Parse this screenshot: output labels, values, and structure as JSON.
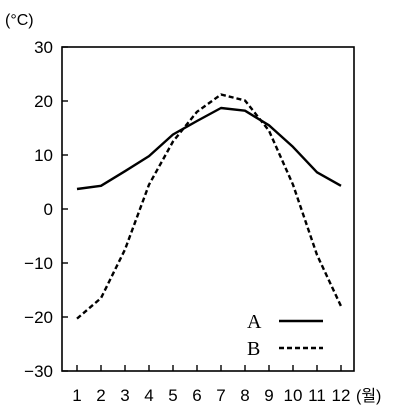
{
  "chart_data": {
    "type": "line",
    "title": "",
    "ylabel": "(°C)",
    "xlabel": "(월)",
    "ylim": [
      -30,
      30
    ],
    "yticks": [
      30,
      20,
      10,
      0,
      -10,
      -20,
      -30
    ],
    "yticks_text": [
      "30",
      "20",
      "10",
      "0",
      "−10",
      "−20",
      "−30"
    ],
    "xlim": [
      1,
      12
    ],
    "x": [
      1,
      2,
      3,
      4,
      5,
      6,
      7,
      8,
      9,
      10,
      11,
      12
    ],
    "grid": false,
    "legend_position": "bottom-right",
    "series": [
      {
        "name": "A",
        "style": "solid",
        "color": "#000000",
        "values": [
          3.7,
          4.3,
          7.0,
          9.8,
          13.8,
          16.3,
          18.7,
          18.2,
          15.5,
          11.5,
          6.8,
          4.3
        ]
      },
      {
        "name": "B",
        "style": "dashed",
        "color": "#000000",
        "values": [
          -20.3,
          -16.5,
          -7.5,
          4.5,
          12.5,
          18.0,
          21.2,
          20.1,
          14.5,
          4.5,
          -8.5,
          -18.0
        ]
      }
    ]
  }
}
